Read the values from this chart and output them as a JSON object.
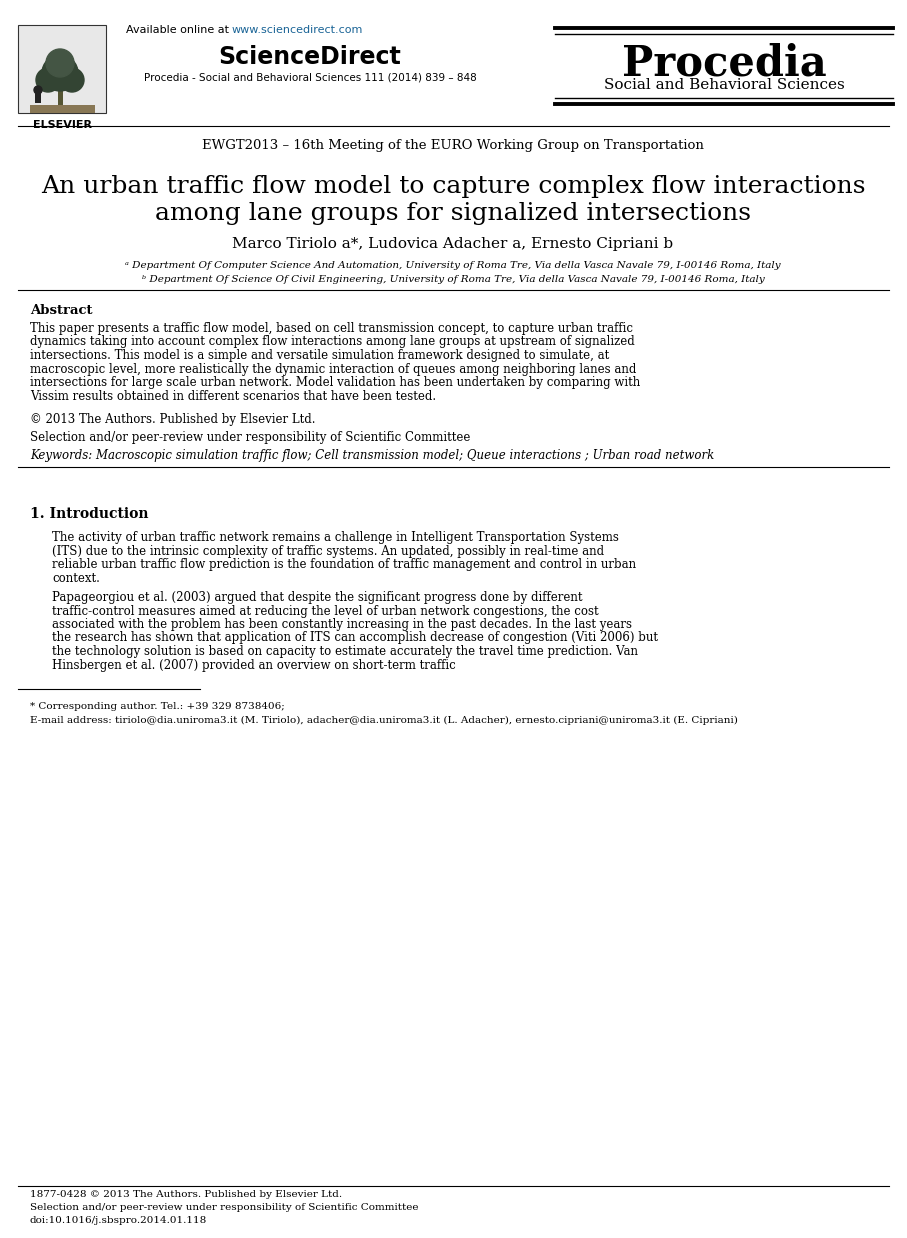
{
  "bg_color": "#ffffff",
  "header": {
    "available_text": "Available online at ",
    "url_text": "www.sciencedirect.com",
    "url_color": "#1a6496",
    "sciencedirect_text": "ScienceDirect",
    "procedia_journal": "Procedia - Social and Behavioral Sciences 111 (2014) 839 – 848",
    "elsevier_text": "ELSEVIER"
  },
  "conference": "EWGT2013 – 16th Meeting of the EURO Working Group on Transportation",
  "title_line1": "An urban traffic flow model to capture complex flow interactions",
  "title_line2": "among lane groups for signalized intersections",
  "authors": "Marco Tiriolo a*, Ludovica Adacher a, Ernesto Cipriani b",
  "affil_a": "ᵃ Department Of Computer Science And Automation, University of Roma Tre, Via della Vasca Navale 79, I-00146 Roma, Italy",
  "affil_b": "ᵇ Department Of Science Of Civil Engineering, University of Roma Tre, Via della Vasca Navale 79, I-00146 Roma, Italy",
  "abstract_title": "Abstract",
  "abstract_body": "This paper presents a traffic flow model, based on cell transmission concept, to capture urban traffic dynamics taking into account complex flow interactions among lane groups at upstream of signalized intersections. This model is a simple and versatile simulation framework designed to simulate, at macroscopic level, more realistically the dynamic interaction of queues among neighboring lanes and intersections for large scale urban network. Model validation has been undertaken by comparing with Vissim results obtained in different scenarios that have been tested.",
  "copyright": "© 2013 The Authors. Published by Elsevier Ltd.\nSelection and/or peer-review under responsibility of Scientific Committee",
  "keywords": "Keywords: Macroscopic simulation traffic flow; Cell transmission model; Queue interactions ; Urban road network",
  "section1_title": "1. Introduction",
  "section1_para1": "The activity of urban traffic network remains a challenge in Intelligent Transportation Systems (ITS) due to the intrinsic complexity of traffic systems. An updated, possibly in real-time and reliable urban traffic flow prediction is the foundation of traffic management and control in urban context.",
  "section1_para2": "Papageorgiou et al. (2003) argued that despite the significant progress done by different traffic-control measures aimed at reducing the level of urban network congestions, the cost associated with the problem has been constantly increasing in the past decades. In the last years the research has shown that application of ITS can accomplish decrease of congestion (Viti 2006) but the technology solution is based on capacity to estimate accurately the travel time prediction. Van Hinsbergen et al. (2007) provided an overview on short-term traffic",
  "footnote_star": "* Corresponding author. Tel.: +39 329 8738406;",
  "footnote_email": "E-mail address: tiriolo@dia.uniroma3.it (M. Tiriolo), adacher@dia.uniroma3.it (L. Adacher), ernesto.cipriani@uniroma3.it (E. Cipriani)",
  "bottom_line1": "1877-0428 © 2013 The Authors. Published by Elsevier Ltd.",
  "bottom_line2": "Selection and/or peer-review under responsibility of Scientific Committee",
  "bottom_line3": "doi:10.1016/j.sbspro.2014.01.118"
}
